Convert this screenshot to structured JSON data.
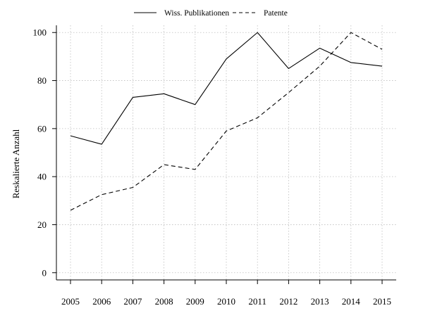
{
  "chart_data": {
    "type": "line",
    "title": "",
    "xlabel": "",
    "ylabel": "Reskalierte Anzahl",
    "categories": [
      "2005",
      "2006",
      "2007",
      "2008",
      "2009",
      "2010",
      "2011",
      "2012",
      "2013",
      "2014",
      "2015"
    ],
    "x": [
      2005,
      2006,
      2007,
      2008,
      2009,
      2010,
      2011,
      2012,
      2013,
      2014,
      2015
    ],
    "ylim": [
      -3,
      103
    ],
    "yticks": [
      0,
      20,
      40,
      60,
      80,
      100
    ],
    "grid": true,
    "legend_position": "top-center",
    "series": [
      {
        "name": "Wiss. Publikationen",
        "style": "solid",
        "values": [
          57,
          53.5,
          73,
          74.5,
          70,
          89,
          100,
          85,
          93.5,
          87.5,
          86
        ]
      },
      {
        "name": "Patente",
        "style": "dashed",
        "values": [
          26,
          32.5,
          35.5,
          45,
          43,
          59,
          64.5,
          75,
          86,
          100,
          93
        ]
      }
    ]
  }
}
